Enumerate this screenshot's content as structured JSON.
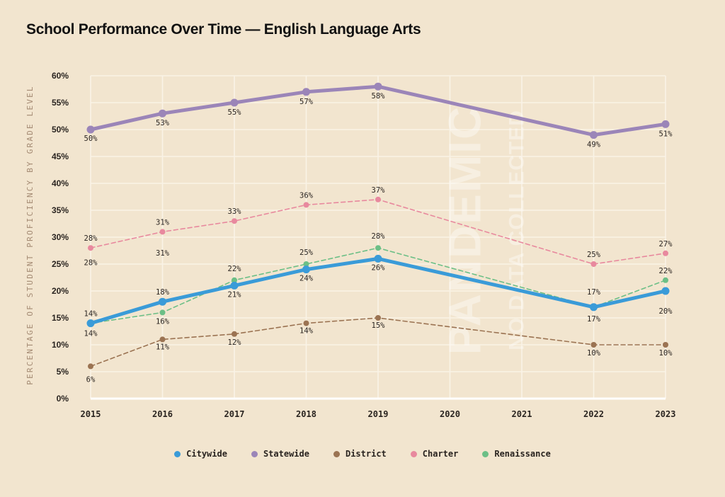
{
  "chart_data": {
    "type": "line",
    "title": "School Performance Over Time — English Language Arts",
    "xlabel": "",
    "ylabel": "PERCENTAGE OF STUDENT PROFICIENCY BY GRADE LEVEL",
    "x": [
      "2015",
      "2016",
      "2017",
      "2018",
      "2019",
      "2020",
      "2021",
      "2022",
      "2023"
    ],
    "ylim": [
      0,
      60
    ],
    "yticks": [
      0,
      5,
      10,
      15,
      20,
      25,
      30,
      35,
      40,
      45,
      50,
      55,
      60
    ],
    "ytick_labels": [
      "0%",
      "5%",
      "10%",
      "15%",
      "20%",
      "25%",
      "30%",
      "35%",
      "40%",
      "45%",
      "50%",
      "55%",
      "60%"
    ],
    "grid": true,
    "legend_position": "bottom-center",
    "annotation": {
      "title": "PANDEMIC",
      "subtitle": "NO DATA COLLECTED",
      "span": [
        "2020",
        "2021"
      ]
    },
    "series": [
      {
        "name": "Statewide",
        "color": "#9b85b8",
        "style": "solid-thick",
        "x": [
          "2015",
          "2016",
          "2017",
          "2018",
          "2019",
          "2022",
          "2023"
        ],
        "values": [
          50,
          53,
          55,
          57,
          58,
          49,
          51
        ],
        "labels": [
          "50%",
          "53%",
          "55%",
          "57%",
          "58%",
          "49%",
          "51%"
        ],
        "label_pos": "below"
      },
      {
        "name": "Charter",
        "color": "#e8899e",
        "style": "dashed",
        "x": [
          "2015",
          "2016",
          "2017",
          "2018",
          "2019",
          "2022",
          "2023"
        ],
        "values": [
          28,
          31,
          33,
          36,
          37,
          25,
          27
        ],
        "labels": [
          "28%",
          "31%",
          "33%",
          "36%",
          "37%",
          "25%",
          "27%"
        ],
        "label_pos": "above"
      },
      {
        "name": "Renaissance",
        "color": "#6cbf86",
        "style": "dashed",
        "x": [
          "2015",
          "2016",
          "2017",
          "2018",
          "2019",
          "2022",
          "2023"
        ],
        "values": [
          14,
          16,
          22,
          25,
          28,
          17,
          22
        ],
        "labels": [
          "14%",
          "16%",
          "22%",
          "25%",
          "28%",
          "17%",
          "22%"
        ],
        "label_pos": "mixed"
      },
      {
        "name": "Citywide",
        "color": "#3a9bd8",
        "style": "solid-thick",
        "x": [
          "2015",
          "2016",
          "2017",
          "2018",
          "2019",
          "2022",
          "2023"
        ],
        "values": [
          14,
          18,
          21,
          24,
          26,
          17,
          20
        ],
        "labels": [
          "14%",
          "18%",
          "21%",
          "24%",
          "26%",
          "17%",
          "20%"
        ],
        "label_pos": "mixed"
      },
      {
        "name": "District",
        "color": "#9b7352",
        "style": "dashed",
        "x": [
          "2015",
          "2016",
          "2017",
          "2018",
          "2019",
          "2022",
          "2023"
        ],
        "values": [
          6,
          11,
          12,
          14,
          15,
          10,
          10
        ],
        "labels": [
          "6%",
          "11%",
          "12%",
          "14%",
          "15%",
          "10%",
          "10%"
        ],
        "label_pos": "below"
      }
    ],
    "extra_labels": [
      {
        "x": "2015",
        "text": "28%",
        "y": 25.3
      },
      {
        "x": "2016",
        "text": "31%",
        "y": 27.1
      }
    ],
    "legend": [
      "Citywide",
      "Statewide",
      "District",
      "Charter",
      "Renaissance"
    ]
  },
  "legend_items": [
    {
      "label": "Citywide",
      "color": "#3a9bd8"
    },
    {
      "label": "Statewide",
      "color": "#9b85b8"
    },
    {
      "label": "District",
      "color": "#9b7352"
    },
    {
      "label": "Charter",
      "color": "#e8899e"
    },
    {
      "label": "Renaissance",
      "color": "#6cbf86"
    }
  ]
}
